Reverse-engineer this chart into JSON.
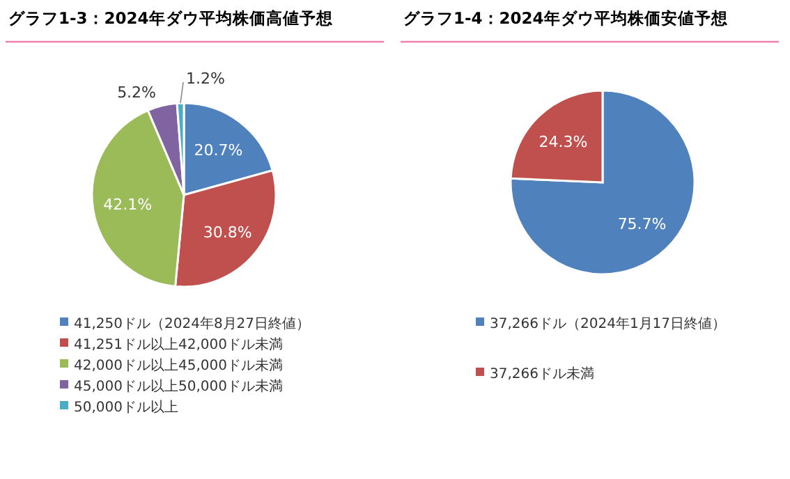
{
  "chart_data": [
    {
      "type": "pie",
      "title": "グラフ1-3：2024年ダウ平均株価高値予想",
      "categories": [
        "41,250ドル（2024年8月27日終値）",
        "41,251ドル以上42,000ドル未満",
        "42,000ドル以上45,000ドル未満",
        "45,000ドル以上50,000ドル未満",
        "50,000ドル以上"
      ],
      "values": [
        20.7,
        30.8,
        42.1,
        5.2,
        1.2
      ],
      "value_labels": [
        "20.7%",
        "30.8%",
        "42.1%",
        "5.2%",
        "1.2%"
      ],
      "colors": [
        "#4f81bd",
        "#c0504d",
        "#9bbb59",
        "#8064a2",
        "#4bacc6"
      ],
      "legend": "bottom"
    },
    {
      "type": "pie",
      "title": "グラフ1-4：2024年ダウ平均株価安値予想",
      "categories": [
        "37,266ドル（2024年1月17日終値）",
        "37,266ドル未満"
      ],
      "values": [
        75.7,
        24.3
      ],
      "value_labels": [
        "75.7%",
        "24.3%"
      ],
      "colors": [
        "#4f81bd",
        "#c0504d"
      ],
      "legend": "bottom"
    }
  ]
}
